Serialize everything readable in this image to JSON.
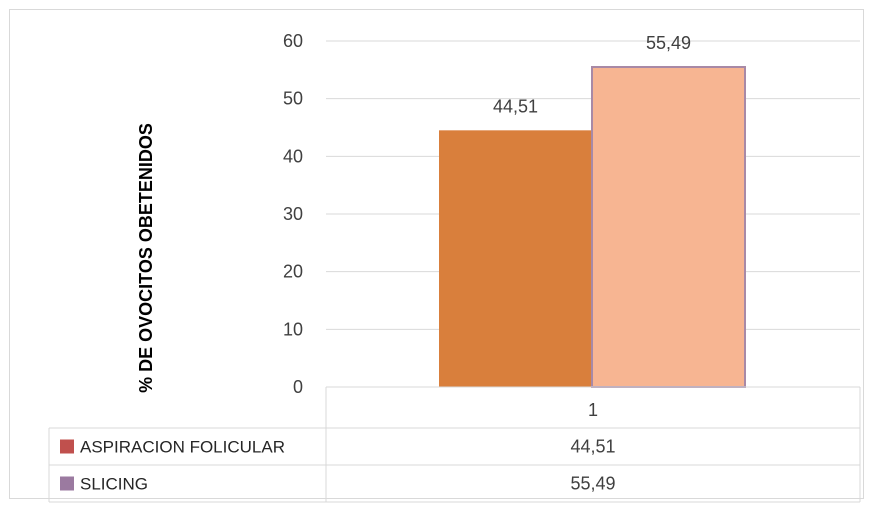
{
  "chart_data": {
    "type": "bar",
    "title": "",
    "xlabel": "",
    "ylabel": "% DE OVOCITOS OBETENIDOS",
    "categories": [
      "1"
    ],
    "ylim": [
      0,
      60
    ],
    "yticks": [
      0,
      10,
      20,
      30,
      40,
      50,
      60
    ],
    "grid": true,
    "legend_placement": "data-table-below",
    "series": [
      {
        "name": "ASPIRACION FOLICULAR",
        "values": [
          44.51
        ],
        "labels": [
          "44,51"
        ],
        "color": "#d97f3c",
        "legend_color": "#c0504d"
      },
      {
        "name": "SLICING",
        "values": [
          55.49
        ],
        "labels": [
          "55,49"
        ],
        "color": "#f7b592",
        "legend_color": "#9b7aa0"
      }
    ]
  },
  "colors": {
    "gridline": "#d9d9d9",
    "bar_outline_slicing": "#a889a6",
    "table_border": "#d9d9d9"
  }
}
